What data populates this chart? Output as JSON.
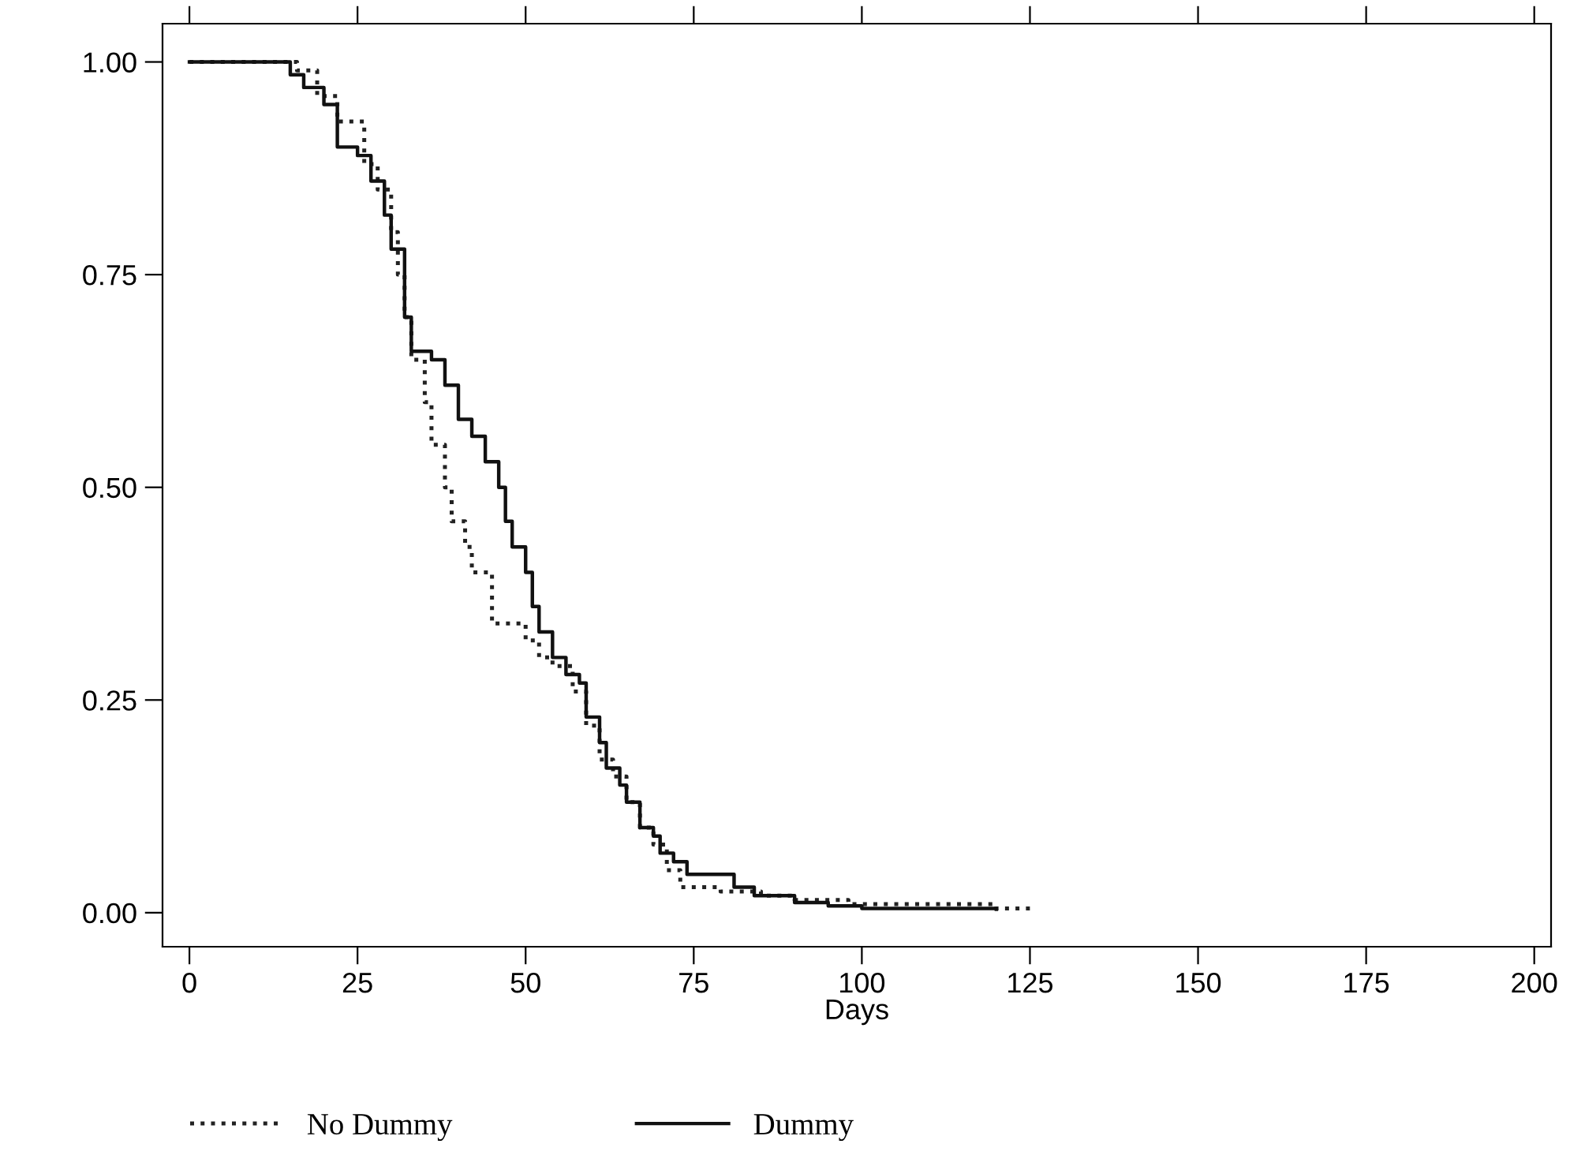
{
  "chart_data": {
    "type": "step",
    "xlabel": "Days",
    "xlim": [
      -4,
      202.5
    ],
    "ylim": [
      -0.04,
      1.045
    ],
    "xticks": [
      0,
      25,
      50,
      75,
      100,
      125,
      150,
      175,
      200
    ],
    "yticks": [
      {
        "value": 0,
        "label": "0.00"
      },
      {
        "value": 0.25,
        "label": "0.25"
      },
      {
        "value": 0.5,
        "label": "0.50"
      },
      {
        "value": 0.75,
        "label": "0.75"
      },
      {
        "value": 1,
        "label": "1.00"
      }
    ],
    "grid": false,
    "legend": "bottom",
    "series": [
      {
        "name": "No Dummy",
        "color": "#222222",
        "line_style": "dotted",
        "x": [
          0,
          16,
          19,
          22,
          26,
          28,
          30,
          31,
          32,
          33,
          35,
          36,
          38,
          39,
          41,
          42,
          45,
          50,
          52,
          54,
          57,
          59,
          61,
          63,
          65,
          67,
          69,
          71,
          73,
          79,
          85,
          90,
          98,
          120,
          125
        ],
        "values": [
          1,
          0.99,
          0.96,
          0.93,
          0.88,
          0.85,
          0.8,
          0.75,
          0.7,
          0.65,
          0.6,
          0.55,
          0.5,
          0.46,
          0.43,
          0.4,
          0.34,
          0.32,
          0.3,
          0.29,
          0.26,
          0.22,
          0.18,
          0.16,
          0.13,
          0.1,
          0.08,
          0.05,
          0.03,
          0.025,
          0.02,
          0.015,
          0.01,
          0.005,
          0.005
        ]
      },
      {
        "name": "Dummy",
        "color": "#111111",
        "line_style": "solid",
        "x": [
          0,
          15,
          17,
          20,
          22,
          25,
          27,
          29,
          30,
          32,
          33,
          36,
          38,
          40,
          42,
          44,
          46,
          47,
          48,
          50,
          51,
          52,
          54,
          56,
          58,
          59,
          61,
          62,
          64,
          65,
          67,
          69,
          70,
          72,
          74,
          81,
          84,
          90,
          95,
          100,
          120
        ],
        "values": [
          1,
          0.985,
          0.97,
          0.95,
          0.9,
          0.89,
          0.86,
          0.82,
          0.78,
          0.7,
          0.66,
          0.65,
          0.62,
          0.58,
          0.56,
          0.53,
          0.5,
          0.46,
          0.43,
          0.4,
          0.36,
          0.33,
          0.3,
          0.28,
          0.27,
          0.23,
          0.2,
          0.17,
          0.15,
          0.13,
          0.1,
          0.09,
          0.07,
          0.06,
          0.045,
          0.03,
          0.02,
          0.012,
          0.008,
          0.005,
          0.004
        ]
      }
    ]
  }
}
